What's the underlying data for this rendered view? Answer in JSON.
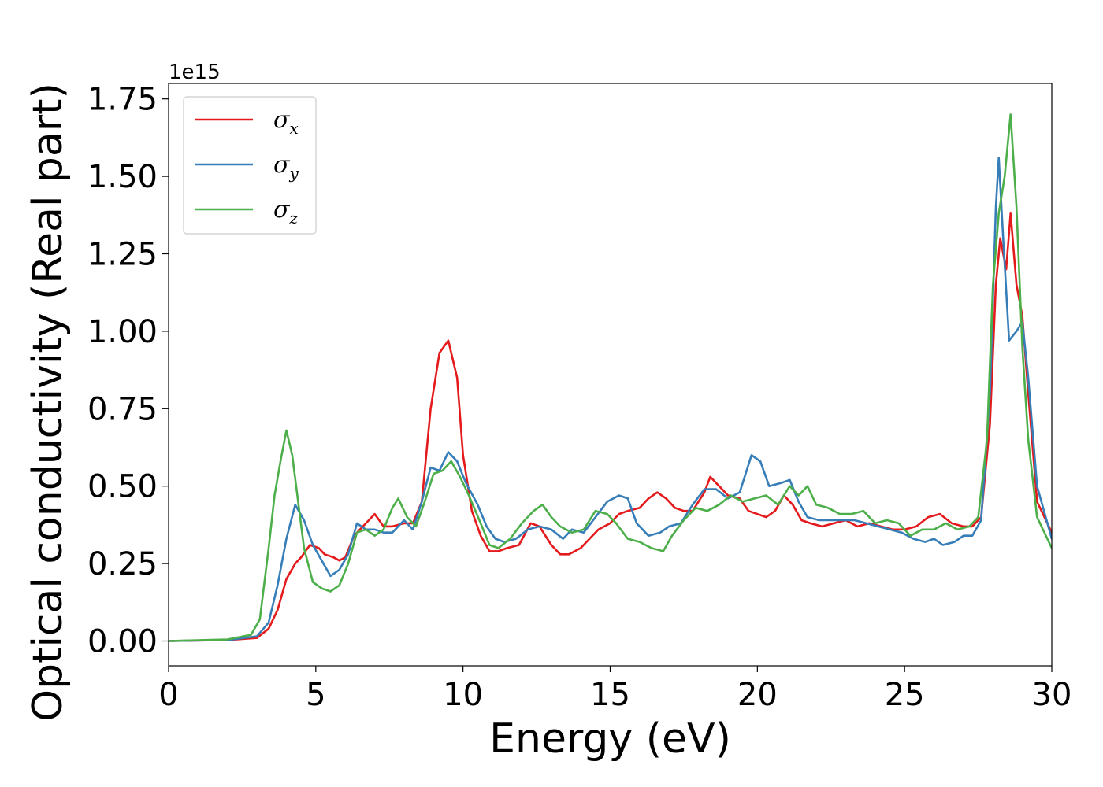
{
  "chart_data": {
    "type": "line",
    "xlabel": "Energy (eV)",
    "ylabel": "Optical conductivity (Real part)",
    "y_offset_label": "1e15",
    "xlim": [
      0,
      30
    ],
    "ylim": [
      -0.08,
      1.8
    ],
    "x_ticks": [
      0,
      5,
      10,
      15,
      20,
      25,
      30
    ],
    "x_tick_labels": [
      "0",
      "5",
      "10",
      "15",
      "20",
      "25",
      "30"
    ],
    "y_ticks": [
      0,
      0.25,
      0.5,
      0.75,
      1.0,
      1.25,
      1.5,
      1.75
    ],
    "y_tick_labels": [
      "0.00",
      "0.25",
      "0.50",
      "0.75",
      "1.00",
      "1.25",
      "1.50",
      "1.75"
    ],
    "grid": false,
    "legend_position": "top-left",
    "series": [
      {
        "name": "σ",
        "subscript": "x",
        "color": "#e41a1c",
        "points": [
          [
            0,
            0
          ],
          [
            2,
            0.003
          ],
          [
            3,
            0.01
          ],
          [
            3.4,
            0.04
          ],
          [
            3.7,
            0.1
          ],
          [
            4.0,
            0.2
          ],
          [
            4.3,
            0.25
          ],
          [
            4.5,
            0.27
          ],
          [
            4.8,
            0.31
          ],
          [
            5.1,
            0.3
          ],
          [
            5.3,
            0.28
          ],
          [
            5.6,
            0.27
          ],
          [
            5.8,
            0.26
          ],
          [
            6.0,
            0.27
          ],
          [
            6.3,
            0.34
          ],
          [
            6.6,
            0.37
          ],
          [
            7.0,
            0.41
          ],
          [
            7.3,
            0.37
          ],
          [
            7.6,
            0.37
          ],
          [
            8.0,
            0.38
          ],
          [
            8.3,
            0.38
          ],
          [
            8.6,
            0.45
          ],
          [
            8.9,
            0.75
          ],
          [
            9.2,
            0.93
          ],
          [
            9.5,
            0.97
          ],
          [
            9.8,
            0.85
          ],
          [
            10.0,
            0.6
          ],
          [
            10.3,
            0.42
          ],
          [
            10.6,
            0.34
          ],
          [
            10.9,
            0.29
          ],
          [
            11.2,
            0.29
          ],
          [
            11.5,
            0.3
          ],
          [
            11.9,
            0.31
          ],
          [
            12.3,
            0.38
          ],
          [
            12.6,
            0.37
          ],
          [
            13.0,
            0.31
          ],
          [
            13.3,
            0.28
          ],
          [
            13.6,
            0.28
          ],
          [
            14.0,
            0.3
          ],
          [
            14.3,
            0.33
          ],
          [
            14.6,
            0.36
          ],
          [
            15.0,
            0.38
          ],
          [
            15.3,
            0.41
          ],
          [
            15.6,
            0.42
          ],
          [
            16.0,
            0.43
          ],
          [
            16.3,
            0.46
          ],
          [
            16.6,
            0.48
          ],
          [
            16.9,
            0.46
          ],
          [
            17.2,
            0.43
          ],
          [
            17.5,
            0.42
          ],
          [
            17.8,
            0.42
          ],
          [
            18.2,
            0.48
          ],
          [
            18.4,
            0.53
          ],
          [
            18.7,
            0.5
          ],
          [
            19.0,
            0.47
          ],
          [
            19.4,
            0.46
          ],
          [
            19.7,
            0.42
          ],
          [
            20.0,
            0.41
          ],
          [
            20.3,
            0.4
          ],
          [
            20.6,
            0.42
          ],
          [
            20.9,
            0.47
          ],
          [
            21.2,
            0.44
          ],
          [
            21.5,
            0.39
          ],
          [
            21.8,
            0.38
          ],
          [
            22.2,
            0.37
          ],
          [
            22.6,
            0.38
          ],
          [
            23.0,
            0.39
          ],
          [
            23.4,
            0.37
          ],
          [
            23.8,
            0.38
          ],
          [
            24.2,
            0.37
          ],
          [
            24.6,
            0.36
          ],
          [
            25.0,
            0.36
          ],
          [
            25.4,
            0.37
          ],
          [
            25.8,
            0.4
          ],
          [
            26.2,
            0.41
          ],
          [
            26.6,
            0.38
          ],
          [
            27.0,
            0.37
          ],
          [
            27.3,
            0.37
          ],
          [
            27.6,
            0.4
          ],
          [
            27.9,
            0.7
          ],
          [
            28.1,
            1.15
          ],
          [
            28.25,
            1.3
          ],
          [
            28.45,
            1.2
          ],
          [
            28.6,
            1.38
          ],
          [
            28.8,
            1.15
          ],
          [
            29.0,
            1.05
          ],
          [
            29.2,
            0.8
          ],
          [
            29.5,
            0.45
          ],
          [
            30,
            0.35
          ]
        ]
      },
      {
        "name": "σ",
        "subscript": "y",
        "color": "#377eb8",
        "points": [
          [
            0,
            0
          ],
          [
            2,
            0.003
          ],
          [
            3,
            0.015
          ],
          [
            3.4,
            0.06
          ],
          [
            3.7,
            0.18
          ],
          [
            4.0,
            0.33
          ],
          [
            4.3,
            0.44
          ],
          [
            4.6,
            0.39
          ],
          [
            4.9,
            0.31
          ],
          [
            5.2,
            0.26
          ],
          [
            5.5,
            0.21
          ],
          [
            5.8,
            0.23
          ],
          [
            6.1,
            0.28
          ],
          [
            6.4,
            0.38
          ],
          [
            6.7,
            0.36
          ],
          [
            7.0,
            0.36
          ],
          [
            7.3,
            0.35
          ],
          [
            7.6,
            0.35
          ],
          [
            8.0,
            0.39
          ],
          [
            8.3,
            0.36
          ],
          [
            8.6,
            0.45
          ],
          [
            8.9,
            0.56
          ],
          [
            9.2,
            0.55
          ],
          [
            9.5,
            0.61
          ],
          [
            9.8,
            0.58
          ],
          [
            10.1,
            0.51
          ],
          [
            10.5,
            0.44
          ],
          [
            10.8,
            0.37
          ],
          [
            11.1,
            0.33
          ],
          [
            11.4,
            0.32
          ],
          [
            11.8,
            0.33
          ],
          [
            12.2,
            0.36
          ],
          [
            12.6,
            0.37
          ],
          [
            13.0,
            0.36
          ],
          [
            13.4,
            0.33
          ],
          [
            13.7,
            0.36
          ],
          [
            14.1,
            0.35
          ],
          [
            14.5,
            0.4
          ],
          [
            14.9,
            0.45
          ],
          [
            15.3,
            0.47
          ],
          [
            15.6,
            0.46
          ],
          [
            15.9,
            0.38
          ],
          [
            16.3,
            0.34
          ],
          [
            16.7,
            0.35
          ],
          [
            17.0,
            0.37
          ],
          [
            17.4,
            0.38
          ],
          [
            17.8,
            0.44
          ],
          [
            18.2,
            0.49
          ],
          [
            18.6,
            0.49
          ],
          [
            19.0,
            0.46
          ],
          [
            19.4,
            0.48
          ],
          [
            19.8,
            0.6
          ],
          [
            20.1,
            0.58
          ],
          [
            20.4,
            0.5
          ],
          [
            20.8,
            0.51
          ],
          [
            21.1,
            0.52
          ],
          [
            21.4,
            0.45
          ],
          [
            21.7,
            0.4
          ],
          [
            22.1,
            0.39
          ],
          [
            22.5,
            0.39
          ],
          [
            22.9,
            0.39
          ],
          [
            23.3,
            0.39
          ],
          [
            23.7,
            0.38
          ],
          [
            24.1,
            0.37
          ],
          [
            24.5,
            0.36
          ],
          [
            24.9,
            0.35
          ],
          [
            25.3,
            0.33
          ],
          [
            25.7,
            0.32
          ],
          [
            26.0,
            0.33
          ],
          [
            26.3,
            0.31
          ],
          [
            26.7,
            0.32
          ],
          [
            27.0,
            0.34
          ],
          [
            27.3,
            0.34
          ],
          [
            27.6,
            0.39
          ],
          [
            27.9,
            0.8
          ],
          [
            28.1,
            1.4
          ],
          [
            28.2,
            1.56
          ],
          [
            28.35,
            1.3
          ],
          [
            28.55,
            0.97
          ],
          [
            28.8,
            1.0
          ],
          [
            29.0,
            1.03
          ],
          [
            29.2,
            0.85
          ],
          [
            29.5,
            0.5
          ],
          [
            30,
            0.33
          ]
        ]
      },
      {
        "name": "σ",
        "subscript": "z",
        "color": "#4daf4a",
        "points": [
          [
            0,
            0
          ],
          [
            2,
            0.005
          ],
          [
            2.8,
            0.02
          ],
          [
            3.1,
            0.07
          ],
          [
            3.4,
            0.3
          ],
          [
            3.6,
            0.47
          ],
          [
            3.8,
            0.58
          ],
          [
            4.0,
            0.68
          ],
          [
            4.2,
            0.6
          ],
          [
            4.4,
            0.45
          ],
          [
            4.6,
            0.3
          ],
          [
            4.9,
            0.19
          ],
          [
            5.2,
            0.17
          ],
          [
            5.5,
            0.16
          ],
          [
            5.8,
            0.18
          ],
          [
            6.1,
            0.25
          ],
          [
            6.4,
            0.35
          ],
          [
            6.7,
            0.36
          ],
          [
            7.0,
            0.34
          ],
          [
            7.3,
            0.36
          ],
          [
            7.6,
            0.43
          ],
          [
            7.8,
            0.46
          ],
          [
            8.1,
            0.4
          ],
          [
            8.4,
            0.37
          ],
          [
            8.7,
            0.45
          ],
          [
            9.0,
            0.54
          ],
          [
            9.3,
            0.55
          ],
          [
            9.6,
            0.58
          ],
          [
            9.9,
            0.53
          ],
          [
            10.2,
            0.47
          ],
          [
            10.6,
            0.38
          ],
          [
            10.9,
            0.31
          ],
          [
            11.2,
            0.3
          ],
          [
            11.6,
            0.33
          ],
          [
            12.0,
            0.38
          ],
          [
            12.4,
            0.42
          ],
          [
            12.7,
            0.44
          ],
          [
            13.0,
            0.4
          ],
          [
            13.3,
            0.37
          ],
          [
            13.7,
            0.35
          ],
          [
            14.1,
            0.36
          ],
          [
            14.5,
            0.42
          ],
          [
            14.9,
            0.41
          ],
          [
            15.2,
            0.38
          ],
          [
            15.6,
            0.33
          ],
          [
            16.0,
            0.32
          ],
          [
            16.4,
            0.3
          ],
          [
            16.8,
            0.29
          ],
          [
            17.1,
            0.34
          ],
          [
            17.5,
            0.39
          ],
          [
            17.9,
            0.43
          ],
          [
            18.3,
            0.42
          ],
          [
            18.7,
            0.44
          ],
          [
            19.1,
            0.47
          ],
          [
            19.5,
            0.45
          ],
          [
            19.9,
            0.46
          ],
          [
            20.3,
            0.47
          ],
          [
            20.7,
            0.44
          ],
          [
            21.1,
            0.5
          ],
          [
            21.4,
            0.47
          ],
          [
            21.7,
            0.5
          ],
          [
            22.0,
            0.44
          ],
          [
            22.4,
            0.43
          ],
          [
            22.8,
            0.41
          ],
          [
            23.2,
            0.41
          ],
          [
            23.6,
            0.42
          ],
          [
            24.0,
            0.38
          ],
          [
            24.4,
            0.39
          ],
          [
            24.8,
            0.38
          ],
          [
            25.2,
            0.34
          ],
          [
            25.6,
            0.36
          ],
          [
            26.0,
            0.36
          ],
          [
            26.4,
            0.38
          ],
          [
            26.8,
            0.36
          ],
          [
            27.2,
            0.37
          ],
          [
            27.5,
            0.4
          ],
          [
            27.8,
            0.65
          ],
          [
            28.0,
            1.15
          ],
          [
            28.2,
            1.38
          ],
          [
            28.4,
            1.5
          ],
          [
            28.6,
            1.7
          ],
          [
            28.8,
            1.4
          ],
          [
            29.0,
            0.95
          ],
          [
            29.2,
            0.65
          ],
          [
            29.5,
            0.4
          ],
          [
            30,
            0.3
          ]
        ]
      }
    ]
  }
}
